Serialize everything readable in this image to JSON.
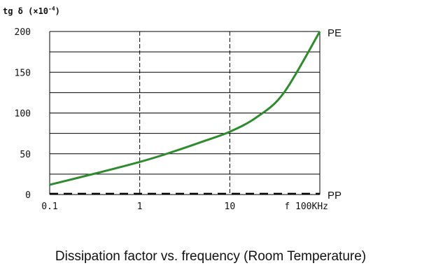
{
  "chart_data": {
    "type": "line",
    "ylabel": "tg δ (×10",
    "ylabel_exp": "-4",
    "ylabel_close": ")",
    "caption": "Dissipation factor vs. frequency (Room Temperature)",
    "ylim": [
      0,
      200
    ],
    "yticks": [
      0,
      50,
      100,
      150,
      200
    ],
    "ytick_labels": [
      "0",
      "50",
      "100",
      "150",
      "200"
    ],
    "x_scale": "log",
    "xlim": [
      0.1,
      100
    ],
    "xtick_labels": [
      "0.1",
      "1",
      "10",
      "f 100KHz"
    ],
    "grid": "horizontal solid every 25, vertical dashed at 1 and 10",
    "series": [
      {
        "name": "PE",
        "color": "#2e8b2e",
        "style": "solid",
        "x": [
          0.1,
          0.3,
          1,
          2,
          5,
          10,
          20,
          40,
          100
        ],
        "y": [
          12,
          25,
          40,
          50,
          65,
          77,
          95,
          125,
          200
        ]
      },
      {
        "name": "PP",
        "color": "#000000",
        "style": "dashed",
        "x": [
          0.1,
          100
        ],
        "y": [
          1,
          1
        ]
      }
    ]
  }
}
